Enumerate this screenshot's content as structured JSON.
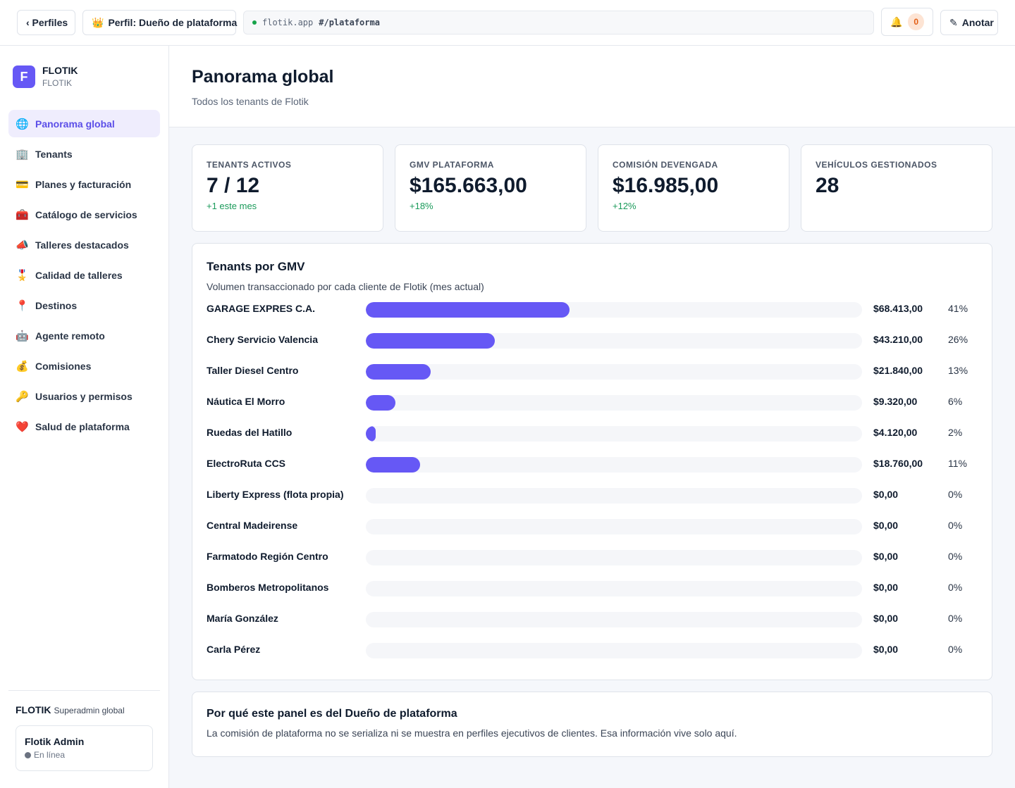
{
  "topbar": {
    "back_label": "‹ Perfiles",
    "profile_icon": "👑",
    "profile_label": "Perfil: Dueño de plataforma",
    "url_host": "flotik.app",
    "url_path": "#/plataforma",
    "bell_icon": "🔔",
    "notification_count": "0",
    "annotate_icon": "✎",
    "annotate_label": "Anotar"
  },
  "brand": {
    "logo_letter": "F",
    "name": "FLOTIK",
    "sub": "FLOTIK"
  },
  "sidebar": {
    "items": [
      {
        "icon": "🌐",
        "label": "Panorama global",
        "active": true
      },
      {
        "icon": "🏢",
        "label": "Tenants"
      },
      {
        "icon": "💳",
        "label": "Planes y facturación"
      },
      {
        "icon": "🧰",
        "label": "Catálogo de servicios"
      },
      {
        "icon": "📣",
        "label": "Talleres destacados"
      },
      {
        "icon": "🎖️",
        "label": "Calidad de talleres"
      },
      {
        "icon": "📍",
        "label": "Destinos"
      },
      {
        "icon": "🤖",
        "label": "Agente remoto"
      },
      {
        "icon": "💰",
        "label": "Comisiones"
      },
      {
        "icon": "🔑",
        "label": "Usuarios y permisos"
      },
      {
        "icon": "❤️",
        "label": "Salud de plataforma"
      }
    ],
    "footer_brand": "FLOTIK",
    "footer_role": "Superadmin global",
    "user_name": "Flotik Admin",
    "user_status": "En línea"
  },
  "page": {
    "title": "Panorama global",
    "subtitle": "Todos los tenants de Flotik"
  },
  "kpis": [
    {
      "label": "TENANTS ACTIVOS",
      "value": "7 / 12",
      "delta": "+1 este mes"
    },
    {
      "label": "GMV PLATAFORMA",
      "value": "$165.663,00",
      "delta": "+18%"
    },
    {
      "label": "COMISIÓN DEVENGADA",
      "value": "$16.985,00",
      "delta": "+12%"
    },
    {
      "label": "VEHÍCULOS GESTIONADOS",
      "value": "28",
      "delta": ""
    }
  ],
  "gmv": {
    "title": "Tenants por GMV",
    "subtitle": "Volumen transaccionado por cada cliente de Flotik (mes actual)",
    "rows": [
      {
        "name": "GARAGE EXPRES C.A.",
        "amount": "$68.413,00",
        "pct_label": "41%",
        "share": 0.41
      },
      {
        "name": "Chery Servicio Valencia",
        "amount": "$43.210,00",
        "pct_label": "26%",
        "share": 0.26
      },
      {
        "name": "Taller Diesel Centro",
        "amount": "$21.840,00",
        "pct_label": "13%",
        "share": 0.13
      },
      {
        "name": "Náutica El Morro",
        "amount": "$9.320,00",
        "pct_label": "6%",
        "share": 0.06
      },
      {
        "name": "Ruedas del Hatillo",
        "amount": "$4.120,00",
        "pct_label": "2%",
        "share": 0.02
      },
      {
        "name": "ElectroRuta CCS",
        "amount": "$18.760,00",
        "pct_label": "11%",
        "share": 0.11
      },
      {
        "name": "Liberty Express (flota propia)",
        "amount": "$0,00",
        "pct_label": "0%",
        "share": 0
      },
      {
        "name": "Central Madeirense",
        "amount": "$0,00",
        "pct_label": "0%",
        "share": 0
      },
      {
        "name": "Farmatodo Región Centro",
        "amount": "$0,00",
        "pct_label": "0%",
        "share": 0
      },
      {
        "name": "Bomberos Metropolitanos",
        "amount": "$0,00",
        "pct_label": "0%",
        "share": 0
      },
      {
        "name": "María González",
        "amount": "$0,00",
        "pct_label": "0%",
        "share": 0
      },
      {
        "name": "Carla Pérez",
        "amount": "$0,00",
        "pct_label": "0%",
        "share": 0
      }
    ]
  },
  "info": {
    "title": "Por qué este panel es del Dueño de plataforma",
    "text": "La comisión de plataforma no se serializa ni se muestra en perfiles ejecutivos de clientes. Esa información vive solo aquí."
  },
  "colors": {
    "accent": "#6658f5",
    "positive": "#1a9a5a",
    "badge_bg": "#fde4d4",
    "badge_fg": "#e35d12"
  }
}
